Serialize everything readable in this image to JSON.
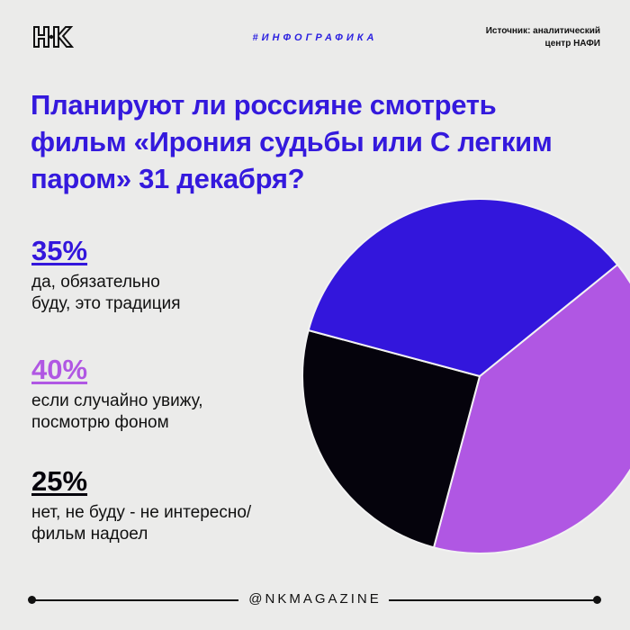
{
  "header": {
    "logo_text": "НК",
    "tag": "#ИНФОГРАФИКА",
    "source_line1": "Источник: аналитический",
    "source_line2": "центр НАФИ"
  },
  "title": "Планируют ли россияне смотреть фильм «Ирония судьбы или С легким паром» 31 декабря?",
  "footer": {
    "handle": "@NKMAGAZINE"
  },
  "chart_data": {
    "type": "pie",
    "title": "Планируют ли россияне смотреть фильм «Ирония судьбы или С легким паром» 31 декабря?",
    "start_angle_deg": -39,
    "slices": [
      {
        "label": "если случайно увижу, посмотрю фоном",
        "value": 40,
        "value_label": "40%",
        "color": "#b057e3"
      },
      {
        "label": "нет, не буду - не интересно/ фильм надоел",
        "value": 25,
        "value_label": "25%",
        "color": "#05030c"
      },
      {
        "label": "да, обязательно буду, это традиция",
        "value": 35,
        "value_label": "35%",
        "color": "#3316dc"
      }
    ],
    "legend": [
      {
        "value_label": "35%",
        "label": "да, обязательно\nбуду, это традиция",
        "color": "#3316dc"
      },
      {
        "value_label": "40%",
        "label": "если случайно увижу,\nпосмотрю фоном",
        "color": "#b057e3"
      },
      {
        "value_label": "25%",
        "label": "нет, не буду - не интересно/\nфильм надоел",
        "color": "#05030c"
      }
    ]
  }
}
